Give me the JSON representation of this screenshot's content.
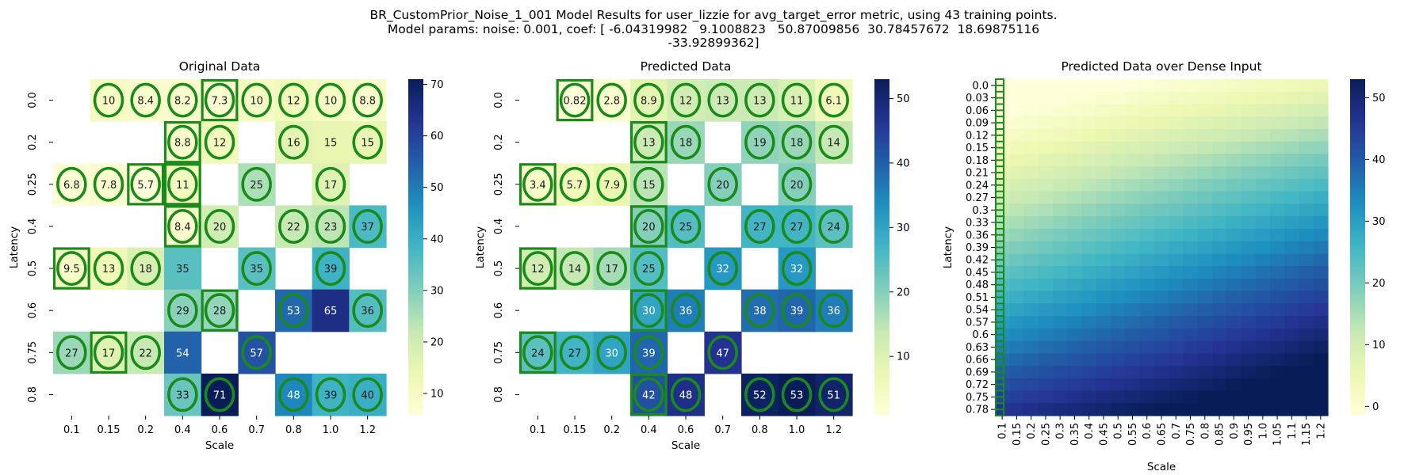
{
  "title_lines": [
    "BR_CustomPrior_Noise_1_001 Model Results for user_lizzie for avg_target_error metric, using 43 training points.",
    "Model params: noise: 0.001, coef: [ -6.04319982   9.1008823   50.87009856  30.78457672  18.69875116",
    "-33.92899362]"
  ],
  "palette": [
    "#ffffd9",
    "#edf8b1",
    "#c7e9b4",
    "#7fcdbb",
    "#41b6c4",
    "#1d91c0",
    "#225ea8",
    "#253494",
    "#081d58"
  ],
  "marker_color": "#1a8a1a",
  "chart_data": [
    {
      "type": "heatmap",
      "title": "Original Data",
      "xlabel": "Scale",
      "ylabel": "Latency",
      "x": [
        "0.1",
        "0.15",
        "0.2",
        "0.4",
        "0.6",
        "0.7",
        "0.8",
        "1.0",
        "1.2"
      ],
      "y": [
        "0.0",
        "0.2",
        "0.25",
        "0.4",
        "0.5",
        "0.6",
        "0.75",
        "0.8"
      ],
      "vmin": 5.7,
      "vmax": 71,
      "colorbar_ticks": [
        10,
        20,
        30,
        40,
        50,
        60,
        70
      ],
      "values": [
        [
          null,
          10,
          8.4,
          8.2,
          7.3,
          10,
          12,
          10,
          8.8
        ],
        [
          null,
          null,
          null,
          8.8,
          12,
          null,
          16,
          15,
          15
        ],
        [
          6.8,
          7.8,
          5.7,
          11,
          null,
          25,
          null,
          17,
          null
        ],
        [
          null,
          null,
          null,
          8.4,
          20,
          null,
          22,
          23,
          37
        ],
        [
          9.5,
          13,
          18,
          35,
          null,
          35,
          null,
          39,
          null
        ],
        [
          null,
          null,
          null,
          29,
          28,
          null,
          53,
          65,
          36
        ],
        [
          27,
          17,
          22,
          54,
          null,
          57,
          null,
          null,
          null
        ],
        [
          null,
          null,
          null,
          33,
          71,
          null,
          48,
          39,
          40
        ]
      ],
      "circles": [
        [
          0,
          1
        ],
        [
          0,
          2
        ],
        [
          0,
          3
        ],
        [
          0,
          4
        ],
        [
          0,
          5
        ],
        [
          0,
          6
        ],
        [
          0,
          7
        ],
        [
          0,
          8
        ],
        [
          1,
          3
        ],
        [
          1,
          4
        ],
        [
          1,
          6
        ],
        [
          1,
          8
        ],
        [
          2,
          0
        ],
        [
          2,
          1
        ],
        [
          2,
          2
        ],
        [
          2,
          3
        ],
        [
          2,
          5
        ],
        [
          2,
          7
        ],
        [
          3,
          3
        ],
        [
          3,
          4
        ],
        [
          3,
          6
        ],
        [
          3,
          7
        ],
        [
          3,
          8
        ],
        [
          4,
          0
        ],
        [
          4,
          1
        ],
        [
          4,
          2
        ],
        [
          4,
          5
        ],
        [
          4,
          7
        ],
        [
          5,
          3
        ],
        [
          5,
          4
        ],
        [
          5,
          6
        ],
        [
          5,
          8
        ],
        [
          6,
          0
        ],
        [
          6,
          1
        ],
        [
          6,
          2
        ],
        [
          6,
          5
        ],
        [
          7,
          3
        ],
        [
          7,
          4
        ],
        [
          7,
          6
        ],
        [
          7,
          7
        ],
        [
          7,
          8
        ]
      ],
      "boxes": [
        [
          0,
          4
        ],
        [
          1,
          3
        ],
        [
          2,
          2
        ],
        [
          2,
          3
        ],
        [
          3,
          3
        ],
        [
          4,
          0
        ],
        [
          5,
          4
        ],
        [
          6,
          1
        ]
      ]
    },
    {
      "type": "heatmap",
      "title": "Predicted Data",
      "xlabel": "Scale",
      "ylabel": "Latency",
      "x": [
        "0.1",
        "0.15",
        "0.2",
        "0.4",
        "0.6",
        "0.7",
        "0.8",
        "1.0",
        "1.2"
      ],
      "y": [
        "0.0",
        "0.2",
        "0.25",
        "0.4",
        "0.5",
        "0.6",
        "0.75",
        "0.8"
      ],
      "vmin": 0.82,
      "vmax": 53,
      "colorbar_ticks": [
        10,
        20,
        30,
        40,
        50
      ],
      "values": [
        [
          null,
          0.82,
          2.8,
          8.9,
          12,
          13,
          13,
          11,
          6.1
        ],
        [
          null,
          null,
          null,
          13,
          18,
          null,
          19,
          18,
          14
        ],
        [
          3.4,
          5.7,
          7.9,
          15,
          null,
          20,
          null,
          20,
          null
        ],
        [
          null,
          null,
          null,
          20,
          25,
          null,
          27,
          27,
          24
        ],
        [
          12,
          14,
          17,
          25,
          null,
          32,
          null,
          32,
          null
        ],
        [
          null,
          null,
          null,
          30,
          36,
          null,
          38,
          39,
          36
        ],
        [
          24,
          27,
          30,
          39,
          null,
          47,
          null,
          null,
          null
        ],
        [
          null,
          null,
          null,
          42,
          48,
          null,
          52,
          53,
          51
        ]
      ],
      "circles": [
        [
          0,
          1
        ],
        [
          0,
          2
        ],
        [
          0,
          3
        ],
        [
          0,
          4
        ],
        [
          0,
          5
        ],
        [
          0,
          6
        ],
        [
          0,
          7
        ],
        [
          0,
          8
        ],
        [
          1,
          3
        ],
        [
          1,
          4
        ],
        [
          1,
          6
        ],
        [
          1,
          7
        ],
        [
          1,
          8
        ],
        [
          2,
          0
        ],
        [
          2,
          1
        ],
        [
          2,
          2
        ],
        [
          2,
          3
        ],
        [
          2,
          5
        ],
        [
          2,
          7
        ],
        [
          3,
          3
        ],
        [
          3,
          4
        ],
        [
          3,
          6
        ],
        [
          3,
          7
        ],
        [
          3,
          8
        ],
        [
          4,
          0
        ],
        [
          4,
          1
        ],
        [
          4,
          2
        ],
        [
          4,
          3
        ],
        [
          4,
          5
        ],
        [
          4,
          7
        ],
        [
          5,
          3
        ],
        [
          5,
          4
        ],
        [
          5,
          6
        ],
        [
          5,
          7
        ],
        [
          5,
          8
        ],
        [
          6,
          0
        ],
        [
          6,
          1
        ],
        [
          6,
          2
        ],
        [
          6,
          3
        ],
        [
          6,
          5
        ],
        [
          7,
          3
        ],
        [
          7,
          4
        ],
        [
          7,
          6
        ],
        [
          7,
          7
        ],
        [
          7,
          8
        ]
      ],
      "boxes": [
        [
          0,
          1
        ],
        [
          1,
          3
        ],
        [
          2,
          0
        ],
        [
          3,
          3
        ],
        [
          4,
          0
        ],
        [
          5,
          3
        ],
        [
          6,
          0
        ],
        [
          7,
          3
        ]
      ]
    },
    {
      "type": "heatmap",
      "title": "Predicted Data over Dense Input",
      "xlabel": "Scale",
      "ylabel": "Latency",
      "x": [
        "0.1",
        "0.15",
        "0.2",
        "0.25",
        "0.3",
        "0.35",
        "0.4",
        "0.45",
        "0.5",
        "0.55",
        "0.6",
        "0.65",
        "0.7",
        "0.75",
        "0.8",
        "0.85",
        "0.9",
        "0.95",
        "1.0",
        "1.05",
        "1.1",
        "1.15",
        "1.2"
      ],
      "y": [
        "0.0",
        "0.03",
        "0.06",
        "0.09",
        "0.12",
        "0.15",
        "0.18",
        "0.21",
        "0.24",
        "0.27",
        "0.3",
        "0.33",
        "0.36",
        "0.39",
        "0.42",
        "0.45",
        "0.48",
        "0.51",
        "0.54",
        "0.57",
        "0.6",
        "0.63",
        "0.66",
        "0.69",
        "0.72",
        "0.75",
        "0.78"
      ],
      "vmin": -1.5,
      "vmax": 53,
      "colorbar_ticks": [
        0,
        10,
        20,
        30,
        40,
        50
      ],
      "coef": [
        -6.04319982,
        9.1008823,
        50.87009856,
        30.78457672,
        18.69875116,
        -33.92899362
      ]
    }
  ]
}
